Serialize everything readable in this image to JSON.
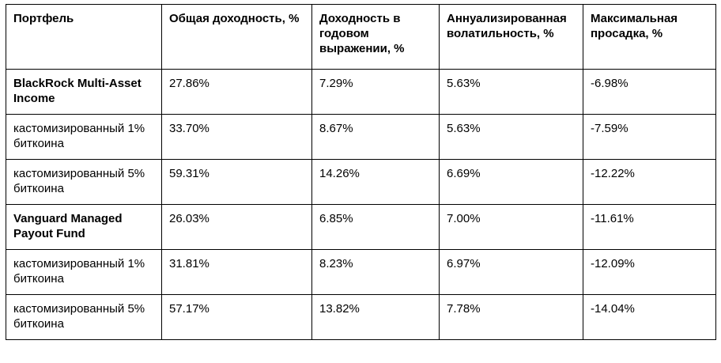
{
  "table": {
    "headers": [
      "Портфель",
      "Общая доходность, %",
      "Доходность в годовом выражении, %",
      "Аннуализированная волатильность, %",
      "Максимальная просадка, %"
    ],
    "rows": [
      {
        "name": "BlackRock Multi-Asset Income",
        "total_return": "27.86%",
        "annualized_return": "7.29%",
        "annualized_volatility": "5.63%",
        "max_drawdown": "-6.98%"
      },
      {
        "name": "кастомизированный 1% биткоина",
        "total_return": "33.70%",
        "annualized_return": "8.67%",
        "annualized_volatility": "5.63%",
        "max_drawdown": "-7.59%"
      },
      {
        "name": "кастомизированный 5% биткоина",
        "total_return": "59.31%",
        "annualized_return": "14.26%",
        "annualized_volatility": "6.69%",
        "max_drawdown": "-12.22%"
      },
      {
        "name": "Vanguard Managed Payout Fund",
        "total_return": "26.03%",
        "annualized_return": "6.85%",
        "annualized_volatility": "7.00%",
        "max_drawdown": "-11.61%"
      },
      {
        "name": "кастомизированный 1% биткоина",
        "total_return": "31.81%",
        "annualized_return": "8.23%",
        "annualized_volatility": "6.97%",
        "max_drawdown": "-12.09%"
      },
      {
        "name": "кастомизированный 5% биткоина",
        "total_return": "57.17%",
        "annualized_return": "13.82%",
        "annualized_volatility": "7.78%",
        "max_drawdown": "-14.04%"
      }
    ]
  }
}
